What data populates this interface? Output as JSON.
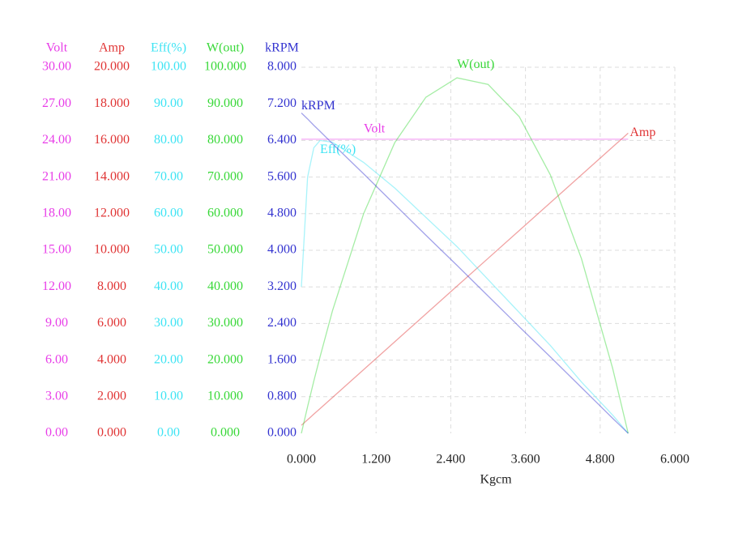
{
  "chart_data": {
    "type": "line",
    "xlabel": "Kgcm",
    "xlim": [
      0,
      6
    ],
    "xticks": [
      {
        "value": 0,
        "label": "0.000"
      },
      {
        "value": 1.2,
        "label": "1.200"
      },
      {
        "value": 2.4,
        "label": "2.400"
      },
      {
        "value": 3.6,
        "label": "3.600"
      },
      {
        "value": 4.8,
        "label": "4.800"
      },
      {
        "value": 6,
        "label": "6.000"
      }
    ],
    "grid": true,
    "axes": [
      {
        "title": "Volt",
        "color": "#e83ee8",
        "lim": [
          0,
          30
        ],
        "ticks": [
          {
            "value": 0,
            "label": "0.00"
          },
          {
            "value": 3,
            "label": "3.00"
          },
          {
            "value": 6,
            "label": "6.00"
          },
          {
            "value": 9,
            "label": "9.00"
          },
          {
            "value": 12,
            "label": "12.00"
          },
          {
            "value": 15,
            "label": "15.00"
          },
          {
            "value": 18,
            "label": "18.00"
          },
          {
            "value": 21,
            "label": "21.00"
          },
          {
            "value": 24,
            "label": "24.00"
          },
          {
            "value": 27,
            "label": "27.00"
          },
          {
            "value": 30,
            "label": "30.00"
          }
        ]
      },
      {
        "title": "Amp",
        "color": "#e03434",
        "lim": [
          0,
          20
        ],
        "ticks": [
          {
            "value": 0,
            "label": "0.000"
          },
          {
            "value": 2,
            "label": "2.000"
          },
          {
            "value": 4,
            "label": "4.000"
          },
          {
            "value": 6,
            "label": "6.000"
          },
          {
            "value": 8,
            "label": "8.000"
          },
          {
            "value": 10,
            "label": "10.000"
          },
          {
            "value": 12,
            "label": "12.000"
          },
          {
            "value": 14,
            "label": "14.000"
          },
          {
            "value": 16,
            "label": "16.000"
          },
          {
            "value": 18,
            "label": "18.000"
          },
          {
            "value": 20,
            "label": "20.000"
          }
        ]
      },
      {
        "title": "Eff(%)",
        "color": "#3ee4f4",
        "lim": [
          0,
          100
        ],
        "ticks": [
          {
            "value": 0,
            "label": "0.00"
          },
          {
            "value": 10,
            "label": "10.00"
          },
          {
            "value": 20,
            "label": "20.00"
          },
          {
            "value": 30,
            "label": "30.00"
          },
          {
            "value": 40,
            "label": "40.00"
          },
          {
            "value": 50,
            "label": "50.00"
          },
          {
            "value": 60,
            "label": "60.00"
          },
          {
            "value": 70,
            "label": "70.00"
          },
          {
            "value": 80,
            "label": "80.00"
          },
          {
            "value": 90,
            "label": "90.00"
          },
          {
            "value": 100,
            "label": "100.00"
          }
        ]
      },
      {
        "title": "W(out)",
        "color": "#38d838",
        "lim": [
          0,
          100
        ],
        "ticks": [
          {
            "value": 0,
            "label": "0.000"
          },
          {
            "value": 10,
            "label": "10.000"
          },
          {
            "value": 20,
            "label": "20.000"
          },
          {
            "value": 30,
            "label": "30.000"
          },
          {
            "value": 40,
            "label": "40.000"
          },
          {
            "value": 50,
            "label": "50.000"
          },
          {
            "value": 60,
            "label": "60.000"
          },
          {
            "value": 70,
            "label": "70.000"
          },
          {
            "value": 80,
            "label": "80.000"
          },
          {
            "value": 90,
            "label": "90.000"
          },
          {
            "value": 100,
            "label": "100.000"
          }
        ]
      },
      {
        "title": "kRPM",
        "color": "#3434d0",
        "lim": [
          0,
          8
        ],
        "ticks": [
          {
            "value": 0,
            "label": "0.000"
          },
          {
            "value": 0.8,
            "label": "0.800"
          },
          {
            "value": 1.6,
            "label": "1.600"
          },
          {
            "value": 2.4,
            "label": "2.400"
          },
          {
            "value": 3.2,
            "label": "3.200"
          },
          {
            "value": 4,
            "label": "4.000"
          },
          {
            "value": 4.8,
            "label": "4.800"
          },
          {
            "value": 5.6,
            "label": "5.600"
          },
          {
            "value": 6.4,
            "label": "6.400"
          },
          {
            "value": 7.2,
            "label": "7.200"
          },
          {
            "value": 8,
            "label": "8.000"
          }
        ]
      }
    ],
    "x": [
      0,
      0.1,
      0.2,
      0.3,
      0.5,
      1.0,
      1.5,
      2.0,
      2.5,
      3.0,
      3.5,
      4.0,
      4.5,
      5.0,
      5.25
    ],
    "series": [
      {
        "name": "Volt",
        "color": "#e83ee8",
        "axis": 0,
        "values": [
          24.1,
          24.1,
          24.1,
          24.1,
          24.1,
          24.1,
          24.1,
          24.1,
          24.1,
          24.1,
          24.1,
          24.1,
          24.1,
          24.1,
          24.1
        ]
      },
      {
        "name": "Amp",
        "color": "#e03434",
        "axis": 1,
        "values": [
          0.44,
          0.74,
          1.05,
          1.35,
          1.96,
          3.48,
          5.0,
          6.52,
          8.04,
          9.56,
          11.08,
          12.6,
          14.12,
          15.64,
          16.4
        ]
      },
      {
        "name": "Eff(%)",
        "color": "#3ee4f4",
        "axis": 2,
        "values": [
          40,
          70,
          78,
          80,
          79.5,
          74,
          67,
          59,
          51,
          42,
          33,
          24,
          14,
          5,
          0
        ]
      },
      {
        "name": "W(out)",
        "color": "#38d838",
        "axis": 3,
        "values": [
          0,
          7.3,
          14.3,
          20.9,
          33.5,
          60.0,
          79.4,
          91.8,
          97.1,
          95.3,
          86.5,
          70.6,
          47.7,
          17.8,
          0
        ]
      },
      {
        "name": "kRPM",
        "color": "#3434d0",
        "axis": 4,
        "values": [
          7.0,
          6.87,
          6.73,
          6.6,
          6.33,
          5.67,
          5.0,
          4.33,
          3.67,
          3.0,
          2.33,
          1.67,
          1.0,
          0.33,
          0
        ]
      }
    ]
  }
}
